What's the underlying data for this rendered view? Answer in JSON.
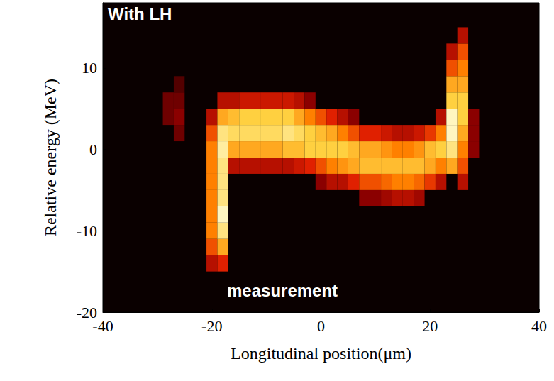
{
  "chart_data": {
    "type": "heatmap",
    "title": "With LH",
    "annotations": [
      "measurement"
    ],
    "x_label": "Longitudinal position(μm)",
    "y_label": "Relative energy (MeV)",
    "xlim": [
      -40,
      40
    ],
    "xticks": [
      -40,
      -20,
      0,
      20,
      40
    ],
    "ylim": [
      -20,
      18
    ],
    "yticks": [
      -20,
      -10,
      0,
      10
    ],
    "grid": false,
    "cell_size": {
      "x": 2,
      "y": 2
    },
    "color_range": [
      0,
      1
    ],
    "cells": [
      [
        -28,
        4,
        0.15
      ],
      [
        -28,
        6,
        0.15
      ],
      [
        -26,
        2,
        0.15
      ],
      [
        -26,
        4,
        0.2
      ],
      [
        -26,
        6,
        0.15
      ],
      [
        -26,
        8,
        0.1
      ],
      [
        -20,
        -14,
        0.3
      ],
      [
        -20,
        -12,
        0.5
      ],
      [
        -20,
        -10,
        0.6
      ],
      [
        -20,
        -8,
        0.6
      ],
      [
        -20,
        -6,
        0.6
      ],
      [
        -20,
        -4,
        0.6
      ],
      [
        -20,
        -2,
        0.6
      ],
      [
        -20,
        0,
        0.6
      ],
      [
        -20,
        2,
        0.5
      ],
      [
        -20,
        4,
        0.3
      ],
      [
        -18,
        -14,
        0.4
      ],
      [
        -18,
        -12,
        0.7
      ],
      [
        -18,
        -10,
        0.9
      ],
      [
        -18,
        -8,
        1.0
      ],
      [
        -18,
        -6,
        0.9
      ],
      [
        -18,
        -4,
        0.9
      ],
      [
        -18,
        -2,
        0.9
      ],
      [
        -18,
        0,
        0.95
      ],
      [
        -18,
        2,
        0.9
      ],
      [
        -18,
        4,
        0.7
      ],
      [
        -18,
        6,
        0.3
      ],
      [
        -16,
        -2,
        0.3
      ],
      [
        -16,
        0,
        0.7
      ],
      [
        -16,
        2,
        0.85
      ],
      [
        -16,
        4,
        0.75
      ],
      [
        -16,
        6,
        0.3
      ],
      [
        -14,
        -2,
        0.3
      ],
      [
        -14,
        0,
        0.7
      ],
      [
        -14,
        2,
        0.85
      ],
      [
        -14,
        4,
        0.8
      ],
      [
        -14,
        6,
        0.35
      ],
      [
        -12,
        -2,
        0.3
      ],
      [
        -12,
        0,
        0.7
      ],
      [
        -12,
        2,
        0.85
      ],
      [
        -12,
        4,
        0.8
      ],
      [
        -12,
        6,
        0.35
      ],
      [
        -10,
        -2,
        0.3
      ],
      [
        -10,
        0,
        0.7
      ],
      [
        -10,
        2,
        0.85
      ],
      [
        -10,
        4,
        0.8
      ],
      [
        -10,
        6,
        0.35
      ],
      [
        -8,
        -2,
        0.3
      ],
      [
        -8,
        0,
        0.7
      ],
      [
        -8,
        2,
        0.85
      ],
      [
        -8,
        4,
        0.8
      ],
      [
        -8,
        6,
        0.35
      ],
      [
        -6,
        -2,
        0.3
      ],
      [
        -6,
        0,
        0.75
      ],
      [
        -6,
        2,
        0.9
      ],
      [
        -6,
        4,
        0.8
      ],
      [
        -6,
        6,
        0.35
      ],
      [
        -4,
        -2,
        0.35
      ],
      [
        -4,
        0,
        0.75
      ],
      [
        -4,
        2,
        0.85
      ],
      [
        -4,
        4,
        0.7
      ],
      [
        -4,
        6,
        0.3
      ],
      [
        -2,
        -2,
        0.4
      ],
      [
        -2,
        0,
        0.8
      ],
      [
        -2,
        2,
        0.8
      ],
      [
        -2,
        4,
        0.6
      ],
      [
        -2,
        6,
        0.2
      ],
      [
        0,
        -4,
        0.2
      ],
      [
        0,
        -2,
        0.5
      ],
      [
        0,
        0,
        0.8
      ],
      [
        0,
        2,
        0.75
      ],
      [
        0,
        4,
        0.5
      ],
      [
        2,
        -4,
        0.3
      ],
      [
        2,
        -2,
        0.6
      ],
      [
        2,
        0,
        0.8
      ],
      [
        2,
        2,
        0.7
      ],
      [
        2,
        4,
        0.4
      ],
      [
        4,
        -4,
        0.3
      ],
      [
        4,
        -2,
        0.65
      ],
      [
        4,
        0,
        0.8
      ],
      [
        4,
        2,
        0.6
      ],
      [
        4,
        4,
        0.3
      ],
      [
        6,
        -4,
        0.4
      ],
      [
        6,
        -2,
        0.7
      ],
      [
        6,
        0,
        0.75
      ],
      [
        6,
        2,
        0.5
      ],
      [
        6,
        4,
        0.2
      ],
      [
        8,
        -6,
        0.2
      ],
      [
        8,
        -4,
        0.5
      ],
      [
        8,
        -2,
        0.75
      ],
      [
        8,
        0,
        0.7
      ],
      [
        8,
        2,
        0.4
      ],
      [
        10,
        -6,
        0.2
      ],
      [
        10,
        -4,
        0.5
      ],
      [
        10,
        -2,
        0.75
      ],
      [
        10,
        0,
        0.7
      ],
      [
        10,
        2,
        0.4
      ],
      [
        12,
        -6,
        0.25
      ],
      [
        12,
        -4,
        0.55
      ],
      [
        12,
        -2,
        0.75
      ],
      [
        12,
        0,
        0.65
      ],
      [
        12,
        2,
        0.35
      ],
      [
        14,
        -6,
        0.3
      ],
      [
        14,
        -4,
        0.6
      ],
      [
        14,
        -2,
        0.75
      ],
      [
        14,
        0,
        0.6
      ],
      [
        14,
        2,
        0.3
      ],
      [
        16,
        -6,
        0.3
      ],
      [
        16,
        -4,
        0.6
      ],
      [
        16,
        -2,
        0.75
      ],
      [
        16,
        0,
        0.6
      ],
      [
        16,
        2,
        0.3
      ],
      [
        18,
        -6,
        0.25
      ],
      [
        18,
        -4,
        0.55
      ],
      [
        18,
        -2,
        0.75
      ],
      [
        18,
        0,
        0.65
      ],
      [
        18,
        2,
        0.35
      ],
      [
        20,
        -4,
        0.45
      ],
      [
        20,
        -2,
        0.7
      ],
      [
        20,
        0,
        0.75
      ],
      [
        20,
        2,
        0.45
      ],
      [
        22,
        -4,
        0.3
      ],
      [
        22,
        -2,
        0.6
      ],
      [
        22,
        0,
        0.8
      ],
      [
        22,
        2,
        0.6
      ],
      [
        22,
        4,
        0.3
      ],
      [
        24,
        -2,
        0.7
      ],
      [
        24,
        0,
        0.9
      ],
      [
        24,
        2,
        1.0
      ],
      [
        24,
        4,
        1.0
      ],
      [
        24,
        6,
        0.8
      ],
      [
        24,
        8,
        0.7
      ],
      [
        24,
        10,
        0.5
      ],
      [
        24,
        12,
        0.3
      ],
      [
        26,
        -4,
        0.3
      ],
      [
        26,
        -2,
        0.5
      ],
      [
        26,
        0,
        0.6
      ],
      [
        26,
        2,
        0.7
      ],
      [
        26,
        4,
        0.8
      ],
      [
        26,
        6,
        0.8
      ],
      [
        26,
        8,
        0.7
      ],
      [
        26,
        10,
        0.6
      ],
      [
        26,
        12,
        0.5
      ],
      [
        26,
        14,
        0.3
      ],
      [
        28,
        0,
        0.2
      ],
      [
        28,
        2,
        0.2
      ],
      [
        28,
        4,
        0.2
      ]
    ]
  }
}
